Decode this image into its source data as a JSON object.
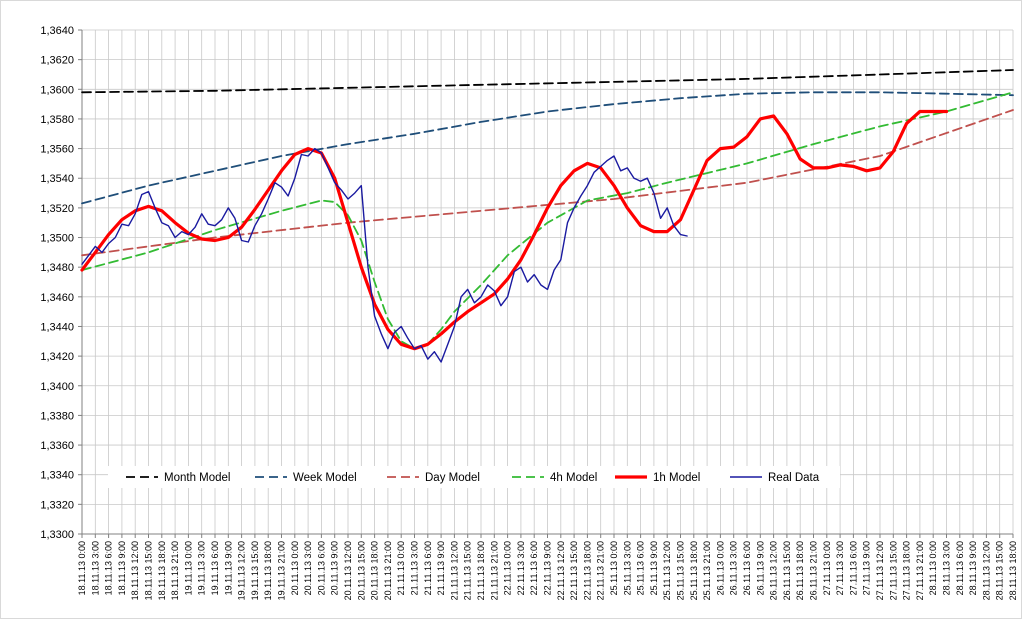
{
  "chart_data": {
    "type": "line",
    "title": "",
    "xlabel": "",
    "ylabel": "",
    "ylim": [
      1.33,
      1.364
    ],
    "y_ticks": [
      1.33,
      1.332,
      1.334,
      1.336,
      1.338,
      1.34,
      1.342,
      1.344,
      1.346,
      1.348,
      1.35,
      1.352,
      1.354,
      1.356,
      1.358,
      1.36,
      1.362,
      1.364
    ],
    "y_tick_labels": [
      "1,3300",
      "1,3320",
      "1,3340",
      "1,3360",
      "1,3380",
      "1,3400",
      "1,3420",
      "1,3440",
      "1,3460",
      "1,3480",
      "1,3500",
      "1,3520",
      "1,3540",
      "1,3560",
      "1,3580",
      "1,3600",
      "1,3620",
      "1,3640"
    ],
    "x_tick_labels": [
      "18.11.13 0:00",
      "18.11.13 3:00",
      "18.11.13 6:00",
      "18.11.13 9:00",
      "18.11.13 12:00",
      "18.11.13 15:00",
      "18.11.13 18:00",
      "18.11.13 21:00",
      "19.11.13 0:00",
      "19.11.13 3:00",
      "19.11.13 6:00",
      "19.11.13 9:00",
      "19.11.13 12:00",
      "19.11.13 15:00",
      "19.11.13 18:00",
      "19.11.13 21:00",
      "20.11.13 0:00",
      "20.11.13 3:00",
      "20.11.13 6:00",
      "20.11.13 9:00",
      "20.11.13 12:00",
      "20.11.13 15:00",
      "20.11.13 18:00",
      "20.11.13 21:00",
      "21.11.13 0:00",
      "21.11.13 3:00",
      "21.11.13 6:00",
      "21.11.13 9:00",
      "21.11.13 12:00",
      "21.11.13 15:00",
      "21.11.13 18:00",
      "21.11.13 21:00",
      "22.11.13 0:00",
      "22.11.13 3:00",
      "22.11.13 6:00",
      "22.11.13 9:00",
      "22.11.13 12:00",
      "22.11.13 15:00",
      "22.11.13 18:00",
      "22.11.13 21:00",
      "25.11.13 0:00",
      "25.11.13 3:00",
      "25.11.13 6:00",
      "25.11.13 9:00",
      "25.11.13 12:00",
      "25.11.13 15:00",
      "25.11.13 18:00",
      "25.11.13 21:00",
      "26.11.13 0:00",
      "26.11.13 3:00",
      "26.11.13 6:00",
      "26.11.13 9:00",
      "26.11.13 12:00",
      "26.11.13 15:00",
      "26.11.13 18:00",
      "26.11.13 21:00",
      "27.11.13 0:00",
      "27.11.13 3:00",
      "27.11.13 6:00",
      "27.11.13 9:00",
      "27.11.13 12:00",
      "27.11.13 15:00",
      "27.11.13 18:00",
      "27.11.13 21:00",
      "28.11.13 0:00",
      "28.11.13 3:00",
      "28.11.13 6:00",
      "28.11.13 9:00",
      "28.11.13 12:00",
      "28.11.13 15:00",
      "28.11.13 18:00"
    ],
    "grid": true,
    "legend_position": "bottom",
    "series": [
      {
        "name": "Month Model",
        "color": "#000000",
        "style": "dashed",
        "points": [
          [
            0,
            1.3598
          ],
          [
            10,
            1.3599
          ],
          [
            20,
            1.3601
          ],
          [
            30,
            1.3603
          ],
          [
            40,
            1.3605
          ],
          [
            50,
            1.3607
          ],
          [
            60,
            1.361
          ],
          [
            70,
            1.3613
          ]
        ]
      },
      {
        "name": "Week Model",
        "color": "#1f4e79",
        "style": "dashed",
        "points": [
          [
            0,
            1.3523
          ],
          [
            5,
            1.3535
          ],
          [
            10,
            1.3545
          ],
          [
            15,
            1.3555
          ],
          [
            20,
            1.3563
          ],
          [
            25,
            1.357
          ],
          [
            30,
            1.3578
          ],
          [
            35,
            1.3585
          ],
          [
            40,
            1.359
          ],
          [
            45,
            1.3594
          ],
          [
            50,
            1.3597
          ],
          [
            55,
            1.3598
          ],
          [
            60,
            1.3598
          ],
          [
            65,
            1.3597
          ],
          [
            70,
            1.3596
          ]
        ]
      },
      {
        "name": "Day Model",
        "color": "#c0504d",
        "style": "dashed",
        "points": [
          [
            0,
            1.3488
          ],
          [
            10,
            1.35
          ],
          [
            20,
            1.351
          ],
          [
            30,
            1.3518
          ],
          [
            40,
            1.3526
          ],
          [
            50,
            1.3537
          ],
          [
            60,
            1.3555
          ],
          [
            70,
            1.3586
          ]
        ]
      },
      {
        "name": "4h Model",
        "color": "#33bb33",
        "style": "dashed",
        "points": [
          [
            0,
            1.3478
          ],
          [
            5,
            1.349
          ],
          [
            10,
            1.3505
          ],
          [
            15,
            1.3518
          ],
          [
            18,
            1.3525
          ],
          [
            19,
            1.3524
          ],
          [
            20,
            1.3515
          ],
          [
            21,
            1.3498
          ],
          [
            22,
            1.347
          ],
          [
            23,
            1.3445
          ],
          [
            24,
            1.343
          ],
          [
            25,
            1.3425
          ],
          [
            26,
            1.3428
          ],
          [
            27,
            1.3438
          ],
          [
            28,
            1.345
          ],
          [
            30,
            1.3468
          ],
          [
            32,
            1.3488
          ],
          [
            35,
            1.351
          ],
          [
            38,
            1.3525
          ],
          [
            41,
            1.353
          ],
          [
            44,
            1.3537
          ],
          [
            50,
            1.355
          ],
          [
            55,
            1.3563
          ],
          [
            60,
            1.3575
          ],
          [
            65,
            1.3585
          ],
          [
            70,
            1.3598
          ]
        ]
      },
      {
        "name": "1h Model",
        "color": "#ff0000",
        "style": "solid",
        "points": [
          [
            0,
            1.3478
          ],
          [
            1,
            1.349
          ],
          [
            2,
            1.3502
          ],
          [
            3,
            1.3512
          ],
          [
            4,
            1.3518
          ],
          [
            5,
            1.3521
          ],
          [
            6,
            1.3518
          ],
          [
            7,
            1.351
          ],
          [
            8,
            1.3503
          ],
          [
            9,
            1.3499
          ],
          [
            10,
            1.3498
          ],
          [
            11,
            1.35
          ],
          [
            12,
            1.3507
          ],
          [
            13,
            1.3519
          ],
          [
            14,
            1.3532
          ],
          [
            15,
            1.3545
          ],
          [
            16,
            1.3556
          ],
          [
            17,
            1.356
          ],
          [
            18,
            1.3557
          ],
          [
            19,
            1.354
          ],
          [
            20,
            1.351
          ],
          [
            21,
            1.348
          ],
          [
            22,
            1.3455
          ],
          [
            23,
            1.3438
          ],
          [
            24,
            1.3428
          ],
          [
            25,
            1.3425
          ],
          [
            26,
            1.3428
          ],
          [
            27,
            1.3435
          ],
          [
            28,
            1.3443
          ],
          [
            29,
            1.345
          ],
          [
            30,
            1.3456
          ],
          [
            31,
            1.3462
          ],
          [
            32,
            1.3472
          ],
          [
            33,
            1.3485
          ],
          [
            34,
            1.3502
          ],
          [
            35,
            1.352
          ],
          [
            36,
            1.3535
          ],
          [
            37,
            1.3545
          ],
          [
            38,
            1.355
          ],
          [
            39,
            1.3547
          ],
          [
            40,
            1.3535
          ],
          [
            41,
            1.352
          ],
          [
            42,
            1.3508
          ],
          [
            43,
            1.3504
          ],
          [
            44,
            1.3504
          ],
          [
            45,
            1.3512
          ],
          [
            46,
            1.3532
          ],
          [
            47,
            1.3552
          ],
          [
            48,
            1.356
          ],
          [
            49,
            1.3561
          ],
          [
            50,
            1.3568
          ],
          [
            51,
            1.358
          ],
          [
            52,
            1.3582
          ],
          [
            53,
            1.357
          ],
          [
            54,
            1.3553
          ],
          [
            55,
            1.3547
          ],
          [
            56,
            1.3547
          ],
          [
            57,
            1.3549
          ],
          [
            58,
            1.3548
          ],
          [
            59,
            1.3545
          ],
          [
            60,
            1.3547
          ],
          [
            61,
            1.3558
          ],
          [
            62,
            1.3577
          ],
          [
            63,
            1.3585
          ],
          [
            64,
            1.3585
          ],
          [
            65,
            1.3585
          ]
        ]
      },
      {
        "name": "Real Data",
        "color": "#1a1aa0",
        "style": "solid",
        "points": [
          [
            0,
            1.3482
          ],
          [
            0.5,
            1.3488
          ],
          [
            1,
            1.3494
          ],
          [
            1.5,
            1.349
          ],
          [
            2,
            1.3496
          ],
          [
            2.5,
            1.35
          ],
          [
            3,
            1.3509
          ],
          [
            3.5,
            1.3508
          ],
          [
            4,
            1.3516
          ],
          [
            4.5,
            1.3529
          ],
          [
            5,
            1.3531
          ],
          [
            5.5,
            1.352
          ],
          [
            6,
            1.351
          ],
          [
            6.5,
            1.3508
          ],
          [
            7,
            1.35
          ],
          [
            7.5,
            1.3504
          ],
          [
            8,
            1.3502
          ],
          [
            8.5,
            1.3507
          ],
          [
            9,
            1.3516
          ],
          [
            9.5,
            1.3509
          ],
          [
            10,
            1.3508
          ],
          [
            10.5,
            1.3512
          ],
          [
            11,
            1.352
          ],
          [
            11.5,
            1.3513
          ],
          [
            12,
            1.3498
          ],
          [
            12.5,
            1.3497
          ],
          [
            13,
            1.3508
          ],
          [
            13.5,
            1.3516
          ],
          [
            14,
            1.3526
          ],
          [
            14.5,
            1.3537
          ],
          [
            15,
            1.3534
          ],
          [
            15.5,
            1.3528
          ],
          [
            16,
            1.354
          ],
          [
            16.5,
            1.3556
          ],
          [
            17,
            1.3555
          ],
          [
            17.5,
            1.356
          ],
          [
            18,
            1.3557
          ],
          [
            18.5,
            1.3547
          ],
          [
            19,
            1.3537
          ],
          [
            19.5,
            1.3532
          ],
          [
            20,
            1.3526
          ],
          [
            20.5,
            1.353
          ],
          [
            21,
            1.3535
          ],
          [
            21.5,
            1.348
          ],
          [
            22,
            1.3447
          ],
          [
            22.5,
            1.3435
          ],
          [
            23,
            1.3425
          ],
          [
            23.5,
            1.3436
          ],
          [
            24,
            1.344
          ],
          [
            24.5,
            1.3432
          ],
          [
            25,
            1.3425
          ],
          [
            25.5,
            1.3427
          ],
          [
            26,
            1.3418
          ],
          [
            26.5,
            1.3423
          ],
          [
            27,
            1.3416
          ],
          [
            27.5,
            1.3428
          ],
          [
            28,
            1.344
          ],
          [
            28.5,
            1.346
          ],
          [
            29,
            1.3465
          ],
          [
            29.5,
            1.3456
          ],
          [
            30,
            1.346
          ],
          [
            30.5,
            1.3468
          ],
          [
            31,
            1.3464
          ],
          [
            31.5,
            1.3454
          ],
          [
            32,
            1.346
          ],
          [
            32.5,
            1.3477
          ],
          [
            33,
            1.348
          ],
          [
            33.5,
            1.347
          ],
          [
            34,
            1.3475
          ],
          [
            34.5,
            1.3468
          ],
          [
            35,
            1.3465
          ],
          [
            35.5,
            1.3478
          ],
          [
            36,
            1.3485
          ],
          [
            36.5,
            1.351
          ],
          [
            37,
            1.352
          ],
          [
            37.5,
            1.3528
          ],
          [
            38,
            1.3535
          ],
          [
            38.5,
            1.3544
          ],
          [
            39,
            1.3548
          ],
          [
            39.5,
            1.3552
          ],
          [
            40,
            1.3555
          ],
          [
            40.5,
            1.3545
          ],
          [
            41,
            1.3547
          ],
          [
            41.5,
            1.354
          ],
          [
            42,
            1.3538
          ],
          [
            42.5,
            1.354
          ],
          [
            43,
            1.353
          ],
          [
            43.5,
            1.3513
          ],
          [
            44,
            1.352
          ],
          [
            44.5,
            1.3508
          ],
          [
            45,
            1.3502
          ],
          [
            45.5,
            1.3501
          ]
        ]
      }
    ]
  }
}
